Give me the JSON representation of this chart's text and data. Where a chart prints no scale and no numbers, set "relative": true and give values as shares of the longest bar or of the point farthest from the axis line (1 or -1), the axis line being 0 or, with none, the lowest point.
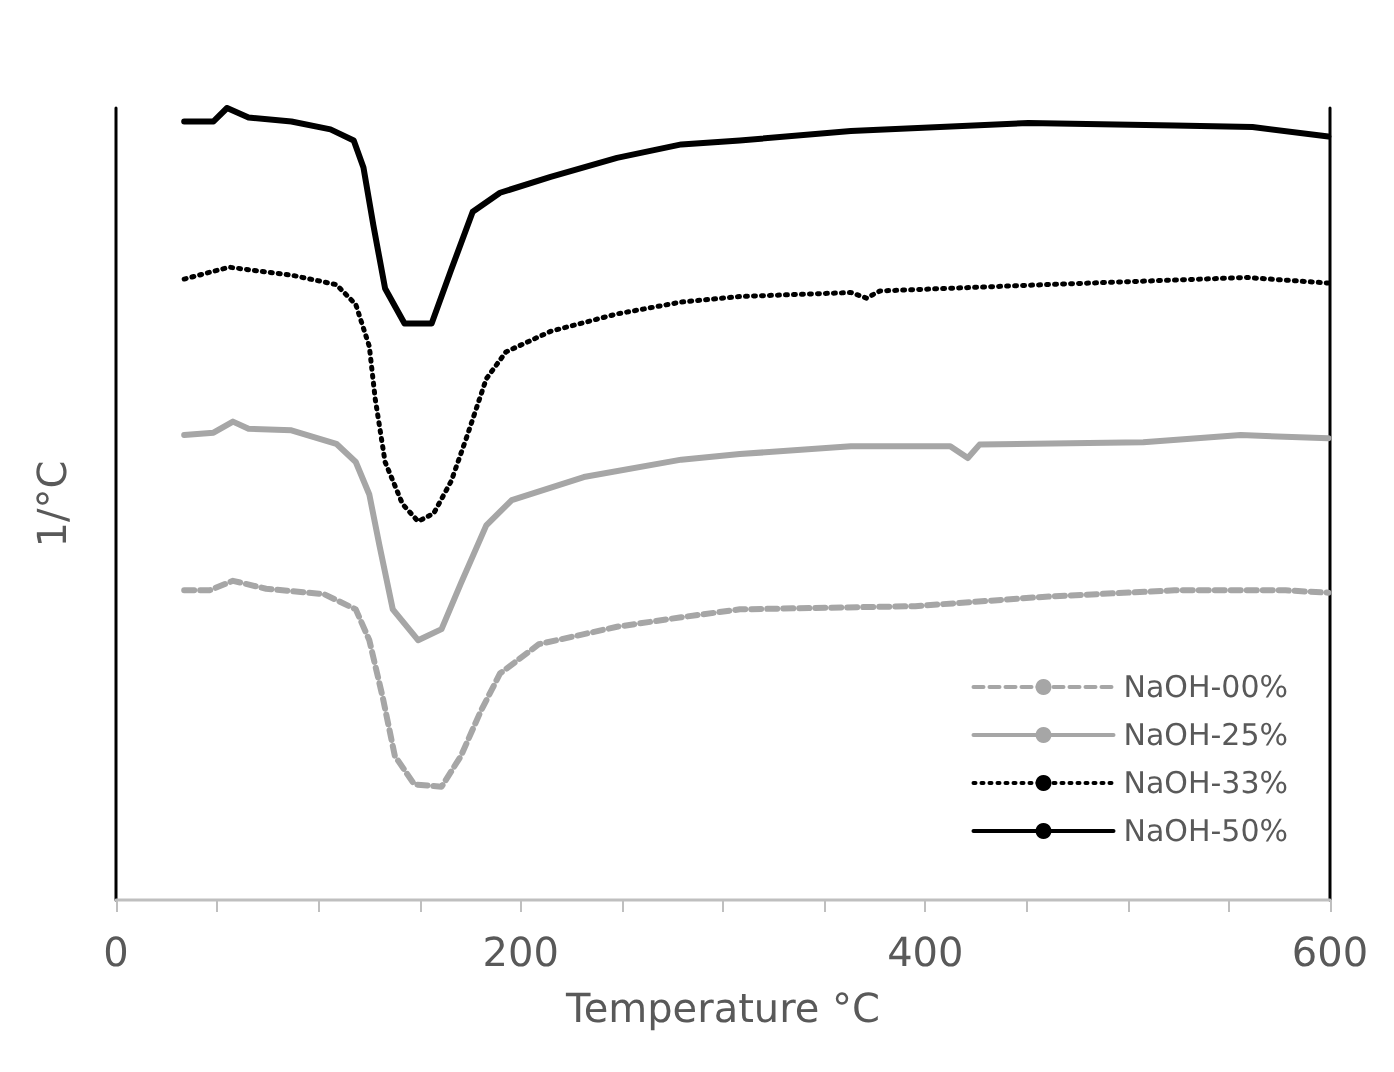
{
  "chart_data": {
    "type": "line",
    "relative": true,
    "xlabel": "Temperature °C",
    "ylabel": "1/°C",
    "xlim": [
      0,
      600
    ],
    "xticks": [
      0,
      {
        "value": 50,
        "label": null
      },
      {
        "value": 100,
        "label": null
      },
      {
        "value": 150,
        "label": null
      },
      200,
      {
        "value": 250,
        "label": null
      },
      {
        "value": 300,
        "label": null
      },
      {
        "value": 350,
        "label": null
      },
      400,
      {
        "value": 450,
        "label": null
      },
      {
        "value": 500,
        "label": null
      },
      {
        "value": 550,
        "label": null
      },
      600
    ],
    "grid": false,
    "legend": "bottom right",
    "marker": "none",
    "series": [
      {
        "name": "NaOH-00%",
        "color": "#a6a6a6",
        "line_style": "dashed",
        "x": [
          33.7,
          46.2,
          57.8,
          74.2,
          103,
          118.5,
          125.2,
          131.9,
          137.8,
          147.4,
          160.9,
          170.5,
          180.2,
          189.8,
          209,
          247.6,
          279.4,
          308.3,
          395,
          459.5,
          523.1,
          578,
          599.2
        ],
        "values": [
          0.391,
          0.391,
          0.403,
          0.393,
          0.386,
          0.367,
          0.328,
          0.255,
          0.182,
          0.146,
          0.143,
          0.182,
          0.238,
          0.286,
          0.323,
          0.345,
          0.357,
          0.367,
          0.371,
          0.383,
          0.391,
          0.391,
          0.388
        ]
      },
      {
        "name": "NaOH-25%",
        "color": "#a6a6a6",
        "line_style": "solid",
        "x": [
          33.7,
          48.2,
          57.8,
          65.5,
          86.7,
          108.9,
          118.5,
          125.2,
          130.1,
          136.8,
          149.3,
          160.9,
          170.5,
          183,
          195.6,
          231.2,
          279.4,
          308.3,
          363.2,
          412.3,
          421,
          426.8,
          507.7,
          555.9,
          599.2
        ],
        "values": [
          0.587,
          0.59,
          0.604,
          0.595,
          0.593,
          0.576,
          0.553,
          0.512,
          0.449,
          0.367,
          0.328,
          0.342,
          0.4,
          0.473,
          0.505,
          0.534,
          0.556,
          0.563,
          0.573,
          0.573,
          0.558,
          0.575,
          0.578,
          0.587,
          0.583
        ]
      },
      {
        "name": "NaOH-33%",
        "color": "#000000",
        "line_style": "dotted",
        "x": [
          33.7,
          55.9,
          86.7,
          108.9,
          118.5,
          125.2,
          128.1,
          133,
          141.6,
          149.3,
          157,
          165.7,
          173.4,
          183,
          192.7,
          214.8,
          247.6,
          279.4,
          308.3,
          363.2,
          370.9,
          377.6,
          459.5,
          558.8,
          599.2
        ],
        "values": [
          0.784,
          0.799,
          0.789,
          0.777,
          0.752,
          0.699,
          0.633,
          0.553,
          0.5,
          0.478,
          0.488,
          0.529,
          0.585,
          0.658,
          0.692,
          0.718,
          0.74,
          0.755,
          0.762,
          0.767,
          0.76,
          0.769,
          0.777,
          0.786,
          0.779
        ]
      },
      {
        "name": "NaOH-50%",
        "color": "#000000",
        "line_style": "solid",
        "x": [
          33.7,
          48.2,
          54.9,
          65.5,
          86.7,
          106,
          117.5,
          122.3,
          127.2,
          133,
          142.6,
          156,
          165.7,
          176.3,
          189.8,
          214.8,
          247.6,
          279.4,
          308.3,
          363.2,
          450.9,
          523.1,
          561.7,
          599.2
        ],
        "values": [
          0.983,
          0.983,
          1,
          0.988,
          0.983,
          0.973,
          0.959,
          0.925,
          0.852,
          0.772,
          0.728,
          0.728,
          0.796,
          0.869,
          0.893,
          0.913,
          0.937,
          0.954,
          0.959,
          0.971,
          0.981,
          0.978,
          0.976,
          0.964
        ]
      }
    ]
  }
}
